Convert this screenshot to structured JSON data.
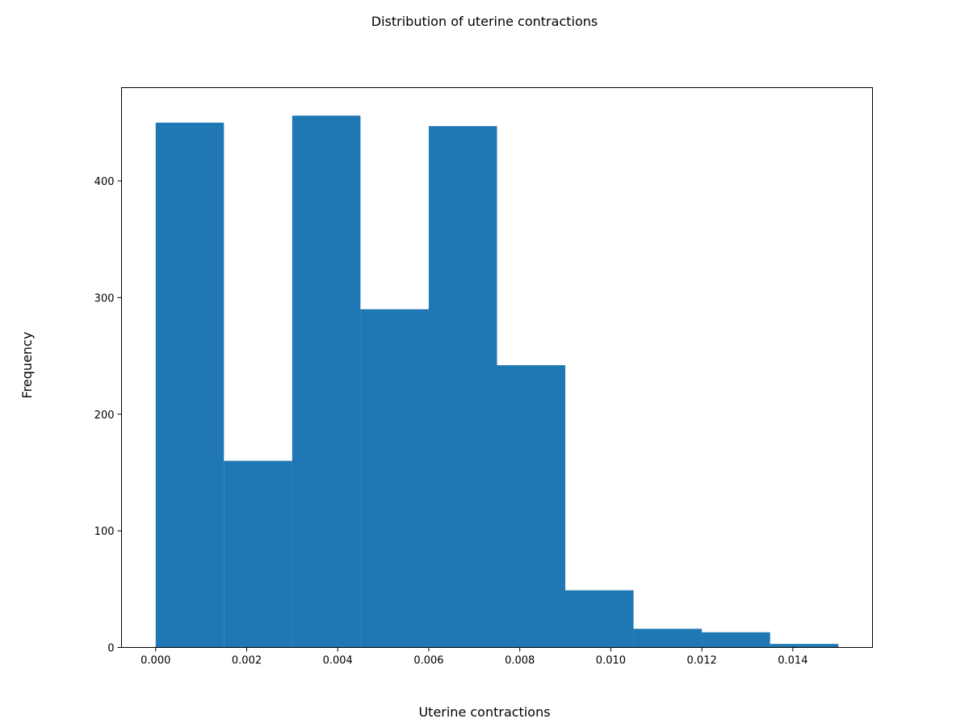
{
  "chart_data": {
    "type": "bar",
    "subtype": "histogram",
    "title": "Distribution of uterine contractions",
    "xlabel": "Uterine contractions",
    "ylabel": "Frequency",
    "bin_edges": [
      0.0,
      0.0015,
      0.003,
      0.0045,
      0.006,
      0.0075,
      0.009,
      0.0105,
      0.012,
      0.0135,
      0.015
    ],
    "values": [
      450,
      160,
      456,
      290,
      447,
      242,
      49,
      16,
      13,
      3
    ],
    "xlim": [
      -0.00075,
      0.01575
    ],
    "ylim": [
      0,
      480
    ],
    "xticks": [
      0.0,
      0.002,
      0.004,
      0.006,
      0.008,
      0.01,
      0.012,
      0.014
    ],
    "xtick_labels": [
      "0.000",
      "0.002",
      "0.004",
      "0.006",
      "0.008",
      "0.010",
      "0.012",
      "0.014"
    ],
    "yticks": [
      0,
      100,
      200,
      300,
      400
    ],
    "ytick_labels": [
      "0",
      "100",
      "200",
      "300",
      "400"
    ],
    "grid": false,
    "legend": "none",
    "colors": {
      "bar": "#1f77b4",
      "axes": "#000000",
      "background": "#ffffff"
    }
  }
}
